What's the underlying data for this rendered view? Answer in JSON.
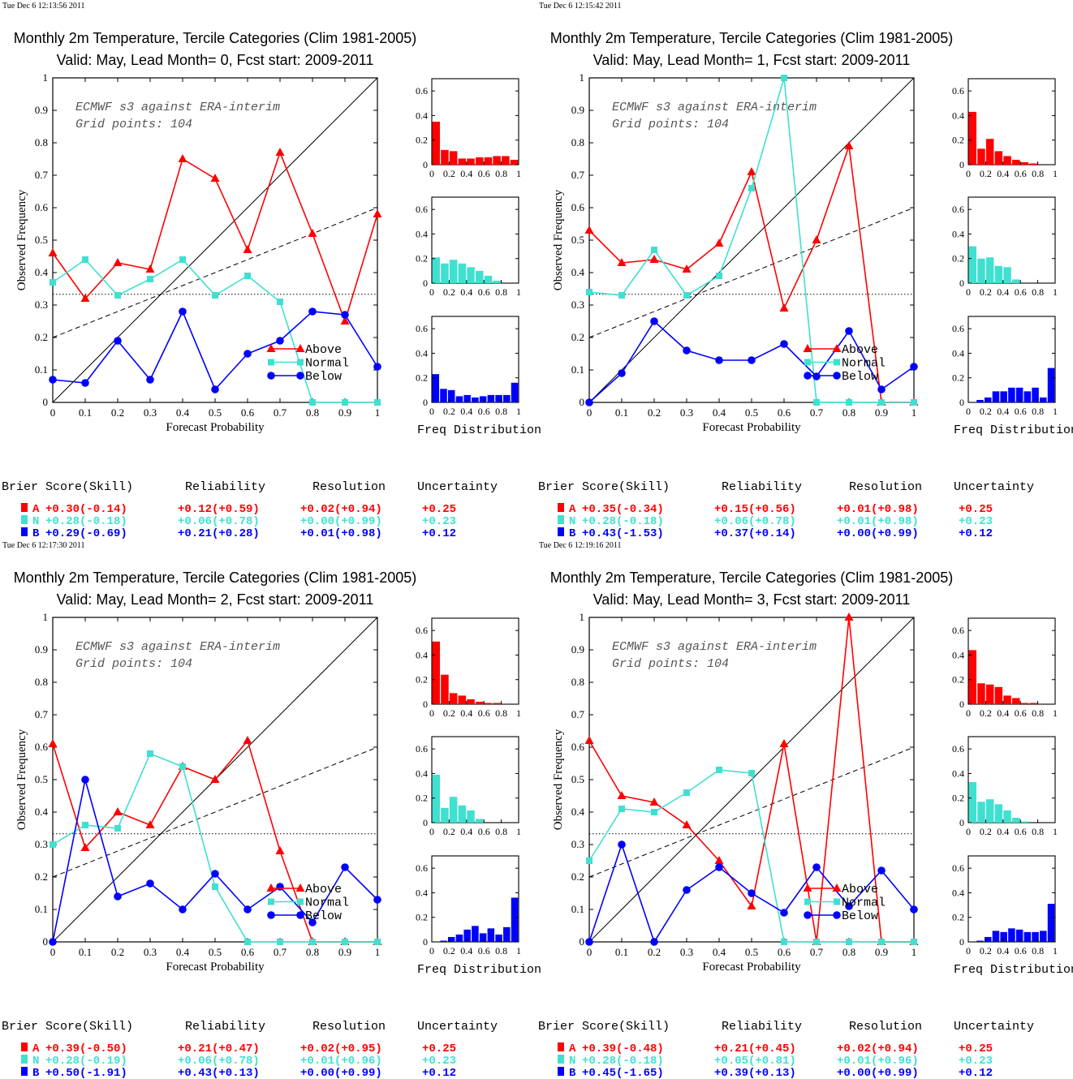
{
  "colors": {
    "above": "#ff0000",
    "normal": "#40e0d0",
    "below": "#0000ff",
    "frame": "#000000"
  },
  "legend_labels": [
    "Above",
    "Normal",
    "Below"
  ],
  "table_headers": [
    "Brier Score(Skill)",
    "Reliability",
    "Resolution",
    "Uncertainty"
  ],
  "category_letters": [
    "A",
    "N",
    "B"
  ],
  "chart_data": [
    {
      "type": "line",
      "timestamp": "Tue Dec  6 12:13:56 2011",
      "title": "Monthly 2m Temperature, Tercile Categories (Clim 1981-2005)",
      "subtitle": "Valid: May, Lead Month= 0, Fcst start: 2009-2011",
      "annotation": [
        "ECMWF s3 against ERA-interim",
        "Grid points:  104"
      ],
      "xlabel": "Forecast Probability",
      "ylabel": "Observed Frequency",
      "hist_label": "Freq Distribution",
      "xlim": [
        0,
        1
      ],
      "ylim": [
        0,
        1
      ],
      "climatology": 0.333,
      "no_skill_line": [
        0.2,
        0.6
      ],
      "x": [
        0,
        0.1,
        0.2,
        0.3,
        0.4,
        0.5,
        0.6,
        0.7,
        0.8,
        0.9,
        1.0
      ],
      "series": [
        {
          "name": "Above",
          "values": [
            0.46,
            0.32,
            0.43,
            0.41,
            0.75,
            0.69,
            0.47,
            0.77,
            0.52,
            0.25,
            0.58
          ]
        },
        {
          "name": "Normal",
          "values": [
            0.37,
            0.44,
            0.33,
            0.38,
            0.44,
            0.33,
            0.39,
            0.31,
            0.0,
            0.0,
            0.0
          ]
        },
        {
          "name": "Below",
          "values": [
            0.07,
            0.06,
            0.19,
            0.07,
            0.28,
            0.04,
            0.15,
            0.19,
            0.28,
            0.27,
            0.11
          ]
        }
      ],
      "hist": [
        [
          0.35,
          0.12,
          0.11,
          0.05,
          0.05,
          0.06,
          0.06,
          0.07,
          0.07,
          0.04
        ],
        [
          0.21,
          0.16,
          0.19,
          0.16,
          0.13,
          0.1,
          0.06,
          0.02,
          0.0,
          0.0
        ],
        [
          0.23,
          0.11,
          0.1,
          0.05,
          0.06,
          0.04,
          0.05,
          0.06,
          0.06,
          0.06,
          0.16
        ]
      ],
      "scores": {
        "A": [
          "+0.30(-0.14)",
          "+0.12(+0.59)",
          "+0.02(+0.94)",
          "+0.25"
        ],
        "N": [
          "+0.28(-0.18)",
          "+0.06(+0.78)",
          "+0.00(+0.99)",
          "+0.23"
        ],
        "B": [
          "+0.29(-0.69)",
          "+0.21(+0.28)",
          "+0.01(+0.98)",
          "+0.12"
        ]
      }
    },
    {
      "type": "line",
      "timestamp": "Tue Dec  6 12:15:42 2011",
      "title": "Monthly 2m Temperature, Tercile Categories (Clim 1981-2005)",
      "subtitle": "Valid: May, Lead Month= 1, Fcst start: 2009-2011",
      "annotation": [
        "ECMWF s3 against ERA-interim",
        "Grid points:  104"
      ],
      "xlabel": "Forecast Probability",
      "ylabel": "Observed Frequency",
      "hist_label": "Freq Distribution",
      "xlim": [
        0,
        1
      ],
      "ylim": [
        0,
        1
      ],
      "climatology": 0.333,
      "no_skill_line": [
        0.2,
        0.6
      ],
      "x": [
        0,
        0.1,
        0.2,
        0.3,
        0.4,
        0.5,
        0.6,
        0.7,
        0.8,
        0.9,
        1.0
      ],
      "series": [
        {
          "name": "Above",
          "values": [
            0.53,
            0.43,
            0.44,
            0.41,
            0.49,
            0.71,
            0.29,
            0.5,
            0.79,
            0.0,
            0.0
          ]
        },
        {
          "name": "Normal",
          "values": [
            0.34,
            0.33,
            0.47,
            0.33,
            0.39,
            0.66,
            1.0,
            0.0,
            0.0,
            0.0,
            0.0
          ]
        },
        {
          "name": "Below",
          "values": [
            0.0,
            0.09,
            0.25,
            0.16,
            0.13,
            0.13,
            0.18,
            0.08,
            0.22,
            0.04,
            0.11
          ]
        }
      ],
      "hist": [
        [
          0.43,
          0.13,
          0.21,
          0.11,
          0.07,
          0.04,
          0.02,
          0.01,
          0.0,
          0.0
        ],
        [
          0.3,
          0.2,
          0.21,
          0.14,
          0.13,
          0.03,
          0.0,
          0.0,
          0.0,
          0.0
        ],
        [
          0.0,
          0.02,
          0.04,
          0.09,
          0.09,
          0.12,
          0.12,
          0.09,
          0.12,
          0.04,
          0.28
        ]
      ],
      "scores": {
        "A": [
          "+0.35(-0.34)",
          "+0.15(+0.56)",
          "+0.01(+0.98)",
          "+0.25"
        ],
        "N": [
          "+0.28(-0.18)",
          "+0.06(+0.78)",
          "+0.01(+0.98)",
          "+0.23"
        ],
        "B": [
          "+0.43(-1.53)",
          "+0.37(+0.14)",
          "+0.00(+0.99)",
          "+0.12"
        ]
      }
    },
    {
      "type": "line",
      "timestamp": "Tue Dec  6 12:17:30 2011",
      "title": "Monthly 2m Temperature, Tercile Categories (Clim 1981-2005)",
      "subtitle": "Valid: May, Lead Month= 2, Fcst start: 2009-2011",
      "annotation": [
        "ECMWF s3 against ERA-interim",
        "Grid points:  104"
      ],
      "xlabel": "Forecast Probability",
      "ylabel": "Observed Frequency",
      "hist_label": "Freq Distribution",
      "xlim": [
        0,
        1
      ],
      "ylim": [
        0,
        1
      ],
      "climatology": 0.333,
      "no_skill_line": [
        0.2,
        0.6
      ],
      "x": [
        0,
        0.1,
        0.2,
        0.3,
        0.4,
        0.5,
        0.6,
        0.7,
        0.8,
        0.9,
        1.0
      ],
      "series": [
        {
          "name": "Above",
          "values": [
            0.61,
            0.29,
            0.4,
            0.36,
            0.54,
            0.5,
            0.62,
            0.28,
            0.0,
            0.0,
            0.0
          ]
        },
        {
          "name": "Normal",
          "values": [
            0.3,
            0.36,
            0.35,
            0.58,
            0.54,
            0.17,
            0.0,
            0.0,
            0.0,
            0.0,
            0.0
          ]
        },
        {
          "name": "Below",
          "values": [
            0.0,
            0.5,
            0.14,
            0.18,
            0.1,
            0.21,
            0.1,
            0.17,
            0.06,
            0.23,
            0.13
          ]
        }
      ],
      "hist": [
        [
          0.51,
          0.24,
          0.09,
          0.07,
          0.04,
          0.02,
          0.01,
          0.01,
          0.0,
          0.0
        ],
        [
          0.39,
          0.12,
          0.21,
          0.14,
          0.1,
          0.03,
          0.0,
          0.0,
          0.0,
          0.0
        ],
        [
          0.0,
          0.01,
          0.04,
          0.06,
          0.1,
          0.13,
          0.07,
          0.11,
          0.06,
          0.12,
          0.36
        ]
      ],
      "scores": {
        "A": [
          "+0.39(-0.50)",
          "+0.21(+0.47)",
          "+0.02(+0.95)",
          "+0.25"
        ],
        "N": [
          "+0.28(-0.19)",
          "+0.06(+0.78)",
          "+0.01(+0.96)",
          "+0.23"
        ],
        "B": [
          "+0.50(-1.91)",
          "+0.43(+0.13)",
          "+0.00(+0.99)",
          "+0.12"
        ]
      }
    },
    {
      "type": "line",
      "timestamp": "Tue Dec  6 12:19:16 2011",
      "title": "Monthly 2m Temperature, Tercile Categories (Clim 1981-2005)",
      "subtitle": "Valid: May, Lead Month= 3, Fcst start: 2009-2011",
      "annotation": [
        "ECMWF s3 against ERA-interim",
        "Grid points:  104"
      ],
      "xlabel": "Forecast Probability",
      "ylabel": "Observed Frequency",
      "hist_label": "Freq Distribution",
      "xlim": [
        0,
        1
      ],
      "ylim": [
        0,
        1
      ],
      "climatology": 0.333,
      "no_skill_line": [
        0.2,
        0.6
      ],
      "x": [
        0,
        0.1,
        0.2,
        0.3,
        0.4,
        0.5,
        0.6,
        0.7,
        0.8,
        0.9,
        1.0
      ],
      "series": [
        {
          "name": "Above",
          "values": [
            0.62,
            0.45,
            0.43,
            0.36,
            0.25,
            0.11,
            0.61,
            0.0,
            1.0,
            0.0,
            0.0
          ]
        },
        {
          "name": "Normal",
          "values": [
            0.25,
            0.41,
            0.4,
            0.46,
            0.53,
            0.52,
            0.0,
            0.0,
            0.0,
            0.0,
            0.0
          ]
        },
        {
          "name": "Below",
          "values": [
            0.0,
            0.3,
            0.0,
            0.16,
            0.23,
            0.15,
            0.09,
            0.23,
            0.11,
            0.22,
            0.1
          ]
        }
      ],
      "hist": [
        [
          0.44,
          0.17,
          0.16,
          0.14,
          0.07,
          0.05,
          0.01,
          0.01,
          0.0,
          0.0
        ],
        [
          0.33,
          0.17,
          0.19,
          0.15,
          0.1,
          0.04,
          0.01,
          0.0,
          0.0,
          0.0
        ],
        [
          0.0,
          0.01,
          0.04,
          0.09,
          0.08,
          0.11,
          0.1,
          0.08,
          0.08,
          0.09,
          0.31
        ]
      ],
      "scores": {
        "A": [
          "+0.39(-0.48)",
          "+0.21(+0.45)",
          "+0.02(+0.94)",
          "+0.25"
        ],
        "N": [
          "+0.28(-0.18)",
          "+0.05(+0.81)",
          "+0.01(+0.96)",
          "+0.23"
        ],
        "B": [
          "+0.45(-1.65)",
          "+0.39(+0.13)",
          "+0.00(+0.99)",
          "+0.12"
        ]
      }
    }
  ]
}
